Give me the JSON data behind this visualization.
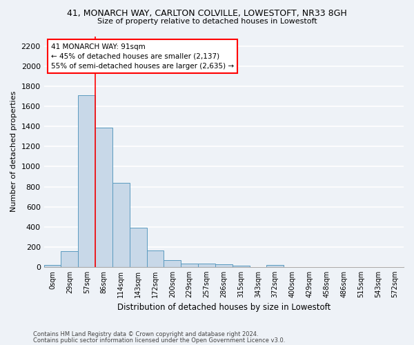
{
  "title_line1": "41, MONARCH WAY, CARLTON COLVILLE, LOWESTOFT, NR33 8GH",
  "title_line2": "Size of property relative to detached houses in Lowestoft",
  "xlabel": "Distribution of detached houses by size in Lowestoft",
  "ylabel": "Number of detached properties",
  "bar_labels": [
    "0sqm",
    "29sqm",
    "57sqm",
    "86sqm",
    "114sqm",
    "143sqm",
    "172sqm",
    "200sqm",
    "229sqm",
    "257sqm",
    "286sqm",
    "315sqm",
    "343sqm",
    "372sqm",
    "400sqm",
    "429sqm",
    "458sqm",
    "486sqm",
    "515sqm",
    "543sqm",
    "572sqm"
  ],
  "bar_values": [
    20,
    155,
    1710,
    1390,
    835,
    390,
    165,
    68,
    35,
    30,
    28,
    15,
    0,
    18,
    0,
    0,
    0,
    0,
    0,
    0,
    0
  ],
  "bar_color": "#c8d8e8",
  "bar_edge_color": "#5a9abf",
  "ylim": [
    0,
    2300
  ],
  "yticks": [
    0,
    200,
    400,
    600,
    800,
    1000,
    1200,
    1400,
    1600,
    1800,
    2000,
    2200
  ],
  "red_line_x": 3,
  "annotation_line1": "41 MONARCH WAY: 91sqm",
  "annotation_line2": "← 45% of detached houses are smaller (2,137)",
  "annotation_line3": "55% of semi-detached houses are larger (2,635) →",
  "footer_line1": "Contains HM Land Registry data © Crown copyright and database right 2024.",
  "footer_line2": "Contains public sector information licensed under the Open Government Licence v3.0.",
  "bg_color": "#eef2f7",
  "grid_color": "#ffffff"
}
